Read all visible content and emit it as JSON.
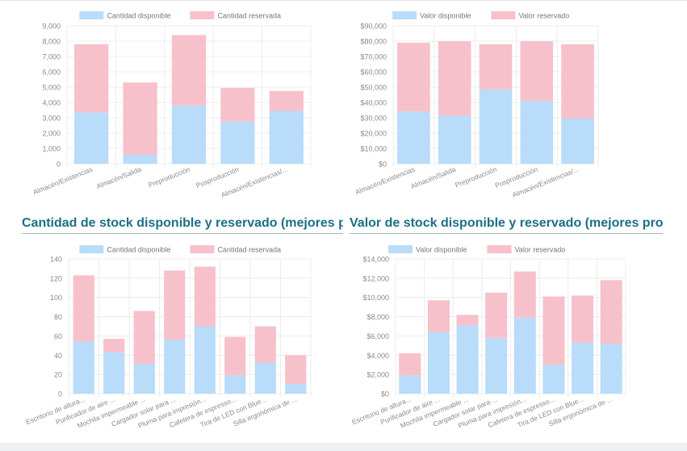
{
  "colors": {
    "available": "#b8dcf9",
    "reserved": "#f6c1cb",
    "grid": "#ececec",
    "axis_text": "#8a8a8a",
    "title": "#1b6f86"
  },
  "section_titles": {
    "left": "Cantidad de stock disponible y reservado (mejores pr",
    "right": "Valor de stock disponible y reservado (mejores prod"
  },
  "chart_data": [
    {
      "id": "qty-by-location",
      "type": "bar",
      "stacked": true,
      "legend": "top",
      "categories": [
        "Almacén/Existencias",
        "Almacén/Salida",
        "Preproducción",
        "Posproducción",
        "Almacén/Existencias/..."
      ],
      "series": [
        {
          "name": "Cantidad disponible",
          "color_key": "available",
          "values": [
            3350,
            600,
            3800,
            2750,
            3450
          ]
        },
        {
          "name": "Cantidad reservada",
          "color_key": "reserved",
          "values": [
            4450,
            4700,
            4600,
            2200,
            1300
          ]
        }
      ],
      "ylim": [
        0,
        9000
      ],
      "yticks": [
        0,
        1000,
        2000,
        3000,
        4000,
        5000,
        6000,
        7000,
        8000,
        9000
      ],
      "ytick_labels": [
        "0",
        "1,000",
        "2,000",
        "3,000",
        "4,000",
        "5,000",
        "6,000",
        "7,000",
        "8,000",
        "9,000"
      ]
    },
    {
      "id": "value-by-location",
      "type": "bar",
      "stacked": true,
      "legend": "top",
      "categories": [
        "Almacén/Existencias",
        "Almacén/Salida",
        "Preproducción",
        "Posproducción",
        "Almacén/Existencias/..."
      ],
      "series": [
        {
          "name": "Valor disponible",
          "color_key": "available",
          "values": [
            34000,
            31500,
            48500,
            41000,
            29500
          ]
        },
        {
          "name": "Valor reservado",
          "color_key": "reserved",
          "values": [
            45000,
            48500,
            29500,
            39000,
            48500
          ]
        }
      ],
      "ylim": [
        0,
        90000
      ],
      "yticks": [
        0,
        10000,
        20000,
        30000,
        40000,
        50000,
        60000,
        70000,
        80000,
        90000
      ],
      "ytick_labels": [
        "$0",
        "$10,000",
        "$20,000",
        "$30,000",
        "$40,000",
        "$50,000",
        "$60,000",
        "$70,000",
        "$80,000",
        "$90,000"
      ]
    },
    {
      "id": "qty-by-product",
      "type": "bar",
      "stacked": true,
      "legend": "top",
      "categories": [
        "Escritorio de altura...",
        "Purificador de aire ...",
        "Mochila impermeable ...",
        "Cargador solar para ...",
        "Pluma para impresión...",
        "Cafetera de espresso...",
        "Tira de LED con Blue...",
        "Silla ergonómica de ..."
      ],
      "series": [
        {
          "name": "Cantidad disponible",
          "color_key": "available",
          "values": [
            54,
            43,
            31,
            56,
            70,
            19,
            32,
            10
          ]
        },
        {
          "name": "Cantidad reservada",
          "color_key": "reserved",
          "values": [
            69,
            14,
            55,
            72,
            62,
            40,
            38,
            30
          ]
        }
      ],
      "ylim": [
        0,
        140
      ],
      "yticks": [
        0,
        20,
        40,
        60,
        80,
        100,
        120,
        140
      ],
      "ytick_labels": [
        "0",
        "20",
        "40",
        "60",
        "80",
        "100",
        "120",
        "140"
      ]
    },
    {
      "id": "value-by-product",
      "type": "bar",
      "stacked": true,
      "legend": "top",
      "categories": [
        "Escritorio de altura...",
        "Purificador de aire ...",
        "Mochila impermeable ...",
        "Cargador solar para ...",
        "Pluma para impresión...",
        "Cafetera de espresso...",
        "Tira de LED con Blue...",
        "Silla ergonómica de ..."
      ],
      "series": [
        {
          "name": "Valor disponible",
          "color_key": "available",
          "values": [
            1900,
            6400,
            7100,
            5800,
            7900,
            3000,
            5300,
            5200
          ]
        },
        {
          "name": "Valor reservado",
          "color_key": "reserved",
          "values": [
            2300,
            3300,
            1100,
            4700,
            4800,
            7100,
            4900,
            6600
          ]
        }
      ],
      "ylim": [
        0,
        14000
      ],
      "yticks": [
        0,
        2000,
        4000,
        6000,
        8000,
        10000,
        12000,
        14000
      ],
      "ytick_labels": [
        "$0",
        "$2,000",
        "$4,000",
        "$6,000",
        "$8,000",
        "$10,000",
        "$12,000",
        "$14,000"
      ]
    }
  ]
}
